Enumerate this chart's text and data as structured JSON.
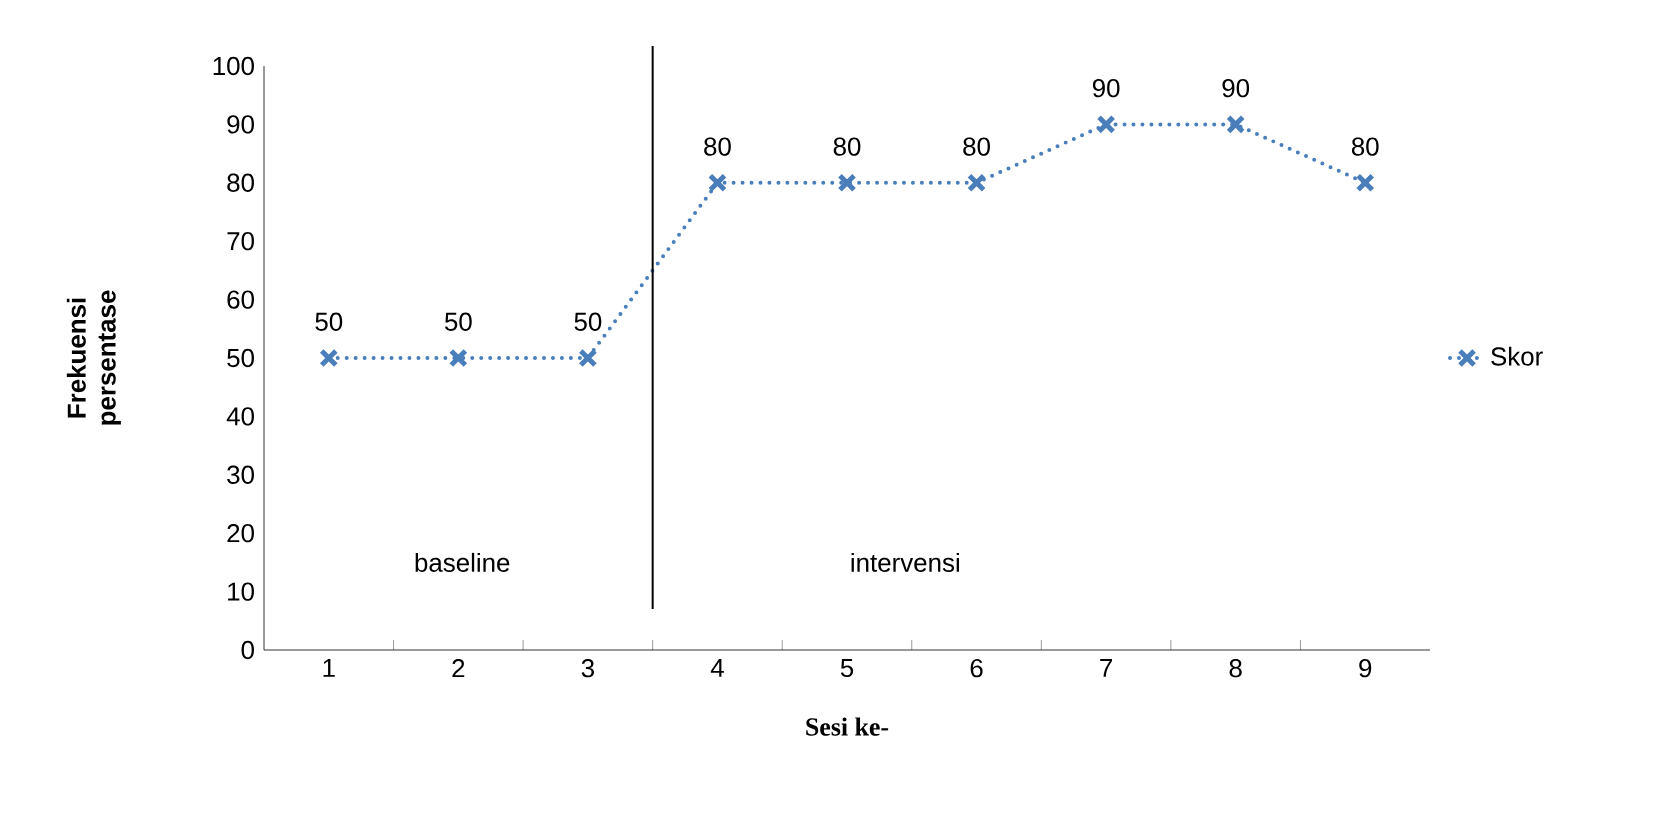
{
  "chart_data": {
    "type": "line",
    "xlabel": "Sesi ke-",
    "ylabel": "Frekuensi persentase",
    "x": [
      1,
      2,
      3,
      4,
      5,
      6,
      7,
      8,
      9
    ],
    "series": [
      {
        "name": "Skor",
        "color": "#4a7ebb",
        "values": [
          50,
          50,
          50,
          80,
          80,
          80,
          90,
          90,
          80
        ]
      }
    ],
    "xlim": [
      0.5,
      9.5
    ],
    "xticks": [
      1,
      2,
      3,
      4,
      5,
      6,
      7,
      8,
      9
    ],
    "ylim": [
      0,
      100
    ],
    "yticks": [
      0,
      10,
      20,
      30,
      40,
      50,
      60,
      70,
      80,
      90,
      100
    ],
    "ref_lines": [
      {
        "axis": "x",
        "value": 3.5,
        "color": "#000000",
        "line_style": "solid"
      }
    ],
    "annotations": [
      "baseline",
      "intervensi"
    ],
    "data_labels": true,
    "legend": "right",
    "grid": false,
    "marker": "cross",
    "line_style": "dotted"
  }
}
